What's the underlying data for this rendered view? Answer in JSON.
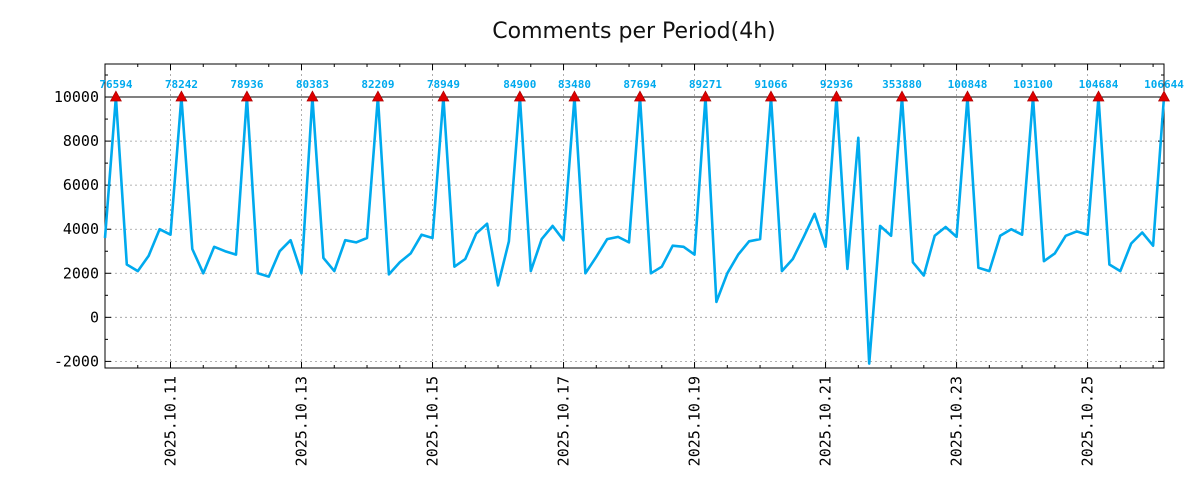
{
  "chart_data": {
    "type": "line",
    "title": "Comments per Period(4h)",
    "xlabel": "",
    "ylabel": "",
    "ylim": [
      -2300,
      11500
    ],
    "x_tick_labels": [
      "2025.10.11",
      "2025.10.13",
      "2025.10.15",
      "2025.10.17",
      "2025.10.19",
      "2025.10.21",
      "2025.10.23",
      "2025.10.25"
    ],
    "y_tick_labels": [
      "-2000",
      "0",
      "2000",
      "4000",
      "6000",
      "8000",
      "10000"
    ],
    "grid": true,
    "x_unit": "hours since 2025.10.10 00:00 (one point per 4h)",
    "clip_value": 10000,
    "series": [
      {
        "name": "comments",
        "color": "#00aaee",
        "x": [
          0,
          4,
          8,
          12,
          16,
          20,
          24,
          28,
          32,
          36,
          40,
          44,
          48,
          52,
          56,
          60,
          64,
          68,
          72,
          76,
          80,
          84,
          88,
          92,
          96,
          100,
          104,
          108,
          112,
          116,
          120,
          124,
          128,
          132,
          136,
          140,
          144,
          148,
          152,
          156,
          160,
          164,
          168,
          172,
          176,
          180,
          184,
          188,
          192,
          196,
          200,
          204,
          208,
          212,
          216,
          220,
          224,
          228,
          232,
          236,
          240,
          244,
          248,
          252,
          256,
          260,
          264,
          268,
          272,
          276,
          280,
          284,
          288,
          292,
          296,
          300,
          304,
          308,
          312,
          316,
          320,
          324,
          328,
          332,
          336,
          340,
          344,
          348,
          352,
          356,
          360,
          364,
          368,
          372,
          376,
          380,
          384,
          388
        ],
        "values": [
          3600,
          10000,
          2400,
          2100,
          2800,
          4000,
          3750,
          10000,
          3100,
          2000,
          3200,
          3000,
          2850,
          10000,
          2000,
          1850,
          3000,
          3500,
          2000,
          10000,
          2700,
          2100,
          3500,
          3400,
          3600,
          10000,
          1950,
          2500,
          2900,
          3750,
          3600,
          10000,
          2300,
          2650,
          3800,
          4250,
          1450,
          3450,
          10000,
          2100,
          3550,
          4150,
          3500,
          10000,
          2000,
          2750,
          3550,
          3650,
          3400,
          10000,
          2000,
          2300,
          3250,
          3200,
          2850,
          10000,
          700,
          2000,
          2850,
          3450,
          3550,
          10000,
          2100,
          2650,
          3650,
          4700,
          3200,
          10000,
          2200,
          8150,
          -2100,
          4150,
          3700,
          10000,
          2500,
          1900,
          3700,
          4100,
          3650,
          10000,
          2250,
          2100,
          3700,
          4000,
          3750,
          10000,
          2550,
          2900,
          3700,
          3900,
          3750,
          10000,
          2400,
          2100,
          3350,
          3850,
          3250,
          10000
        ]
      }
    ],
    "peak_markers": [
      {
        "x": 4,
        "label": "76594"
      },
      {
        "x": 28,
        "label": "78242"
      },
      {
        "x": 52,
        "label": "78936"
      },
      {
        "x": 76,
        "label": "80383"
      },
      {
        "x": 100,
        "label": "82209"
      },
      {
        "x": 124,
        "label": "78949"
      },
      {
        "x": 152,
        "label": "84900"
      },
      {
        "x": 172,
        "label": "83480"
      },
      {
        "x": 196,
        "label": "87694"
      },
      {
        "x": 220,
        "label": "89271"
      },
      {
        "x": 244,
        "label": "91066"
      },
      {
        "x": 268,
        "label": "92936"
      },
      {
        "x": 292,
        "label": "353880"
      },
      {
        "x": 316,
        "label": "100848"
      },
      {
        "x": 340,
        "label": "103100"
      },
      {
        "x": 364,
        "label": "104684"
      },
      {
        "x": 388,
        "label": "106644"
      }
    ],
    "marker_color": "#dd0000",
    "label_color": "#00aaee"
  }
}
